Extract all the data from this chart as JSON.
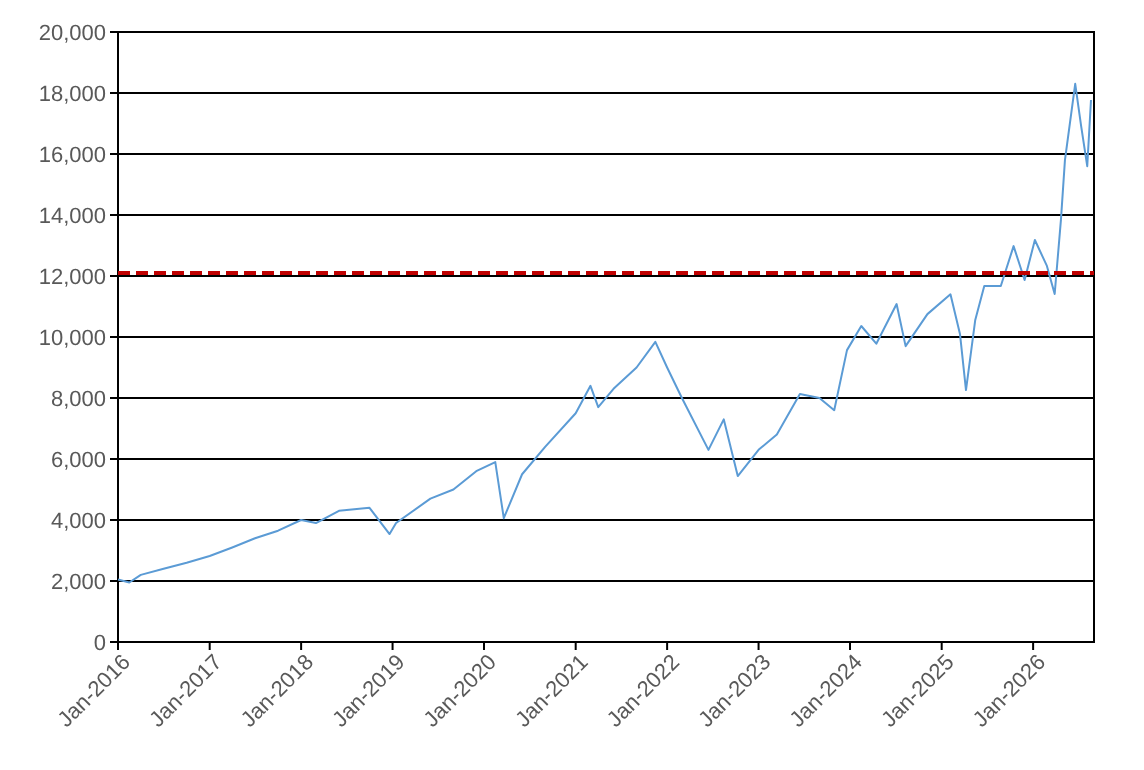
{
  "chart_data": {
    "type": "line",
    "x": [
      "2016-01-01",
      "2016-02-15",
      "2016-04-01",
      "2016-07-01",
      "2016-10-01",
      "2017-01-01",
      "2017-04-01",
      "2017-07-01",
      "2017-10-01",
      "2018-01-01",
      "2018-03-01",
      "2018-06-01",
      "2018-10-01",
      "2018-12-20",
      "2019-01-15",
      "2019-06-01",
      "2019-09-01",
      "2019-12-01",
      "2020-02-15",
      "2020-03-20",
      "2020-06-01",
      "2020-09-01",
      "2021-01-01",
      "2021-03-01",
      "2021-04-01",
      "2021-06-01",
      "2021-09-01",
      "2021-11-15",
      "2022-01-01",
      "2022-03-01",
      "2022-06-15",
      "2022-08-15",
      "2022-10-10",
      "2023-01-01",
      "2023-03-15",
      "2023-06-15",
      "2023-09-01",
      "2023-10-30",
      "2023-12-20",
      "2024-02-15",
      "2024-04-15",
      "2024-07-05",
      "2024-08-10",
      "2024-11-05",
      "2025-02-05",
      "2025-03-15",
      "2025-04-08",
      "2025-05-15",
      "2025-06-20",
      "2025-08-25",
      "2025-10-15",
      "2025-11-28",
      "2026-01-08",
      "2026-02-25",
      "2026-03-28",
      "2026-04-22",
      "2026-05-08",
      "2026-06-18",
      "2026-07-12",
      "2026-08-05",
      "2026-08-20"
    ],
    "series": [
      {
        "color": "#5b9bd5",
        "values": [
          2050,
          1950,
          2200,
          2400,
          2600,
          2820,
          3100,
          3400,
          3650,
          4000,
          3900,
          4300,
          4400,
          3540,
          3900,
          4700,
          5000,
          5600,
          5900,
          4060,
          5500,
          6400,
          7500,
          8400,
          7700,
          8300,
          9000,
          9840,
          9000,
          8000,
          6300,
          7300,
          5440,
          6300,
          6800,
          8130,
          8000,
          7600,
          9570,
          10360,
          9780,
          11080,
          9700,
          10750,
          11400,
          10100,
          8260,
          10560,
          11670,
          11670,
          12980,
          11870,
          13180,
          12330,
          11410,
          13840,
          15800,
          18300,
          16900,
          15600,
          17770
        ]
      }
    ],
    "xlim": [
      "2016-01-01",
      "2026-09-01"
    ],
    "xticks": [
      {
        "value": "2016-01-01",
        "label": "Jan-2016"
      },
      {
        "value": "2017-01-01",
        "label": "Jan-2017"
      },
      {
        "value": "2018-01-01",
        "label": "Jan-2018"
      },
      {
        "value": "2019-01-01",
        "label": "Jan-2019"
      },
      {
        "value": "2020-01-01",
        "label": "Jan-2020"
      },
      {
        "value": "2021-01-01",
        "label": "Jan-2021"
      },
      {
        "value": "2022-01-01",
        "label": "Jan-2022"
      },
      {
        "value": "2023-01-01",
        "label": "Jan-2023"
      },
      {
        "value": "2024-01-01",
        "label": "Jan-2024"
      },
      {
        "value": "2025-01-01",
        "label": "Jan-2025"
      },
      {
        "value": "2026-01-01",
        "label": "Jan-2026"
      }
    ],
    "ylim": [
      0,
      20000
    ],
    "yticks": [
      {
        "value": 0,
        "label": "0"
      },
      {
        "value": 2000,
        "label": "2,000"
      },
      {
        "value": 4000,
        "label": "4,000"
      },
      {
        "value": 6000,
        "label": "6,000"
      },
      {
        "value": 8000,
        "label": "8,000"
      },
      {
        "value": 10000,
        "label": "10,000"
      },
      {
        "value": 12000,
        "label": "12,000"
      },
      {
        "value": 14000,
        "label": "14,000"
      },
      {
        "value": 16000,
        "label": "16,000"
      },
      {
        "value": 18000,
        "label": "18,000"
      },
      {
        "value": 20000,
        "label": "20,000"
      }
    ],
    "grid": "y",
    "marker": "none",
    "line_style": "solid",
    "ref_lines": [
      {
        "axis": "y",
        "value": 12100,
        "color": "#c00000",
        "line_style": "dashed"
      }
    ]
  }
}
